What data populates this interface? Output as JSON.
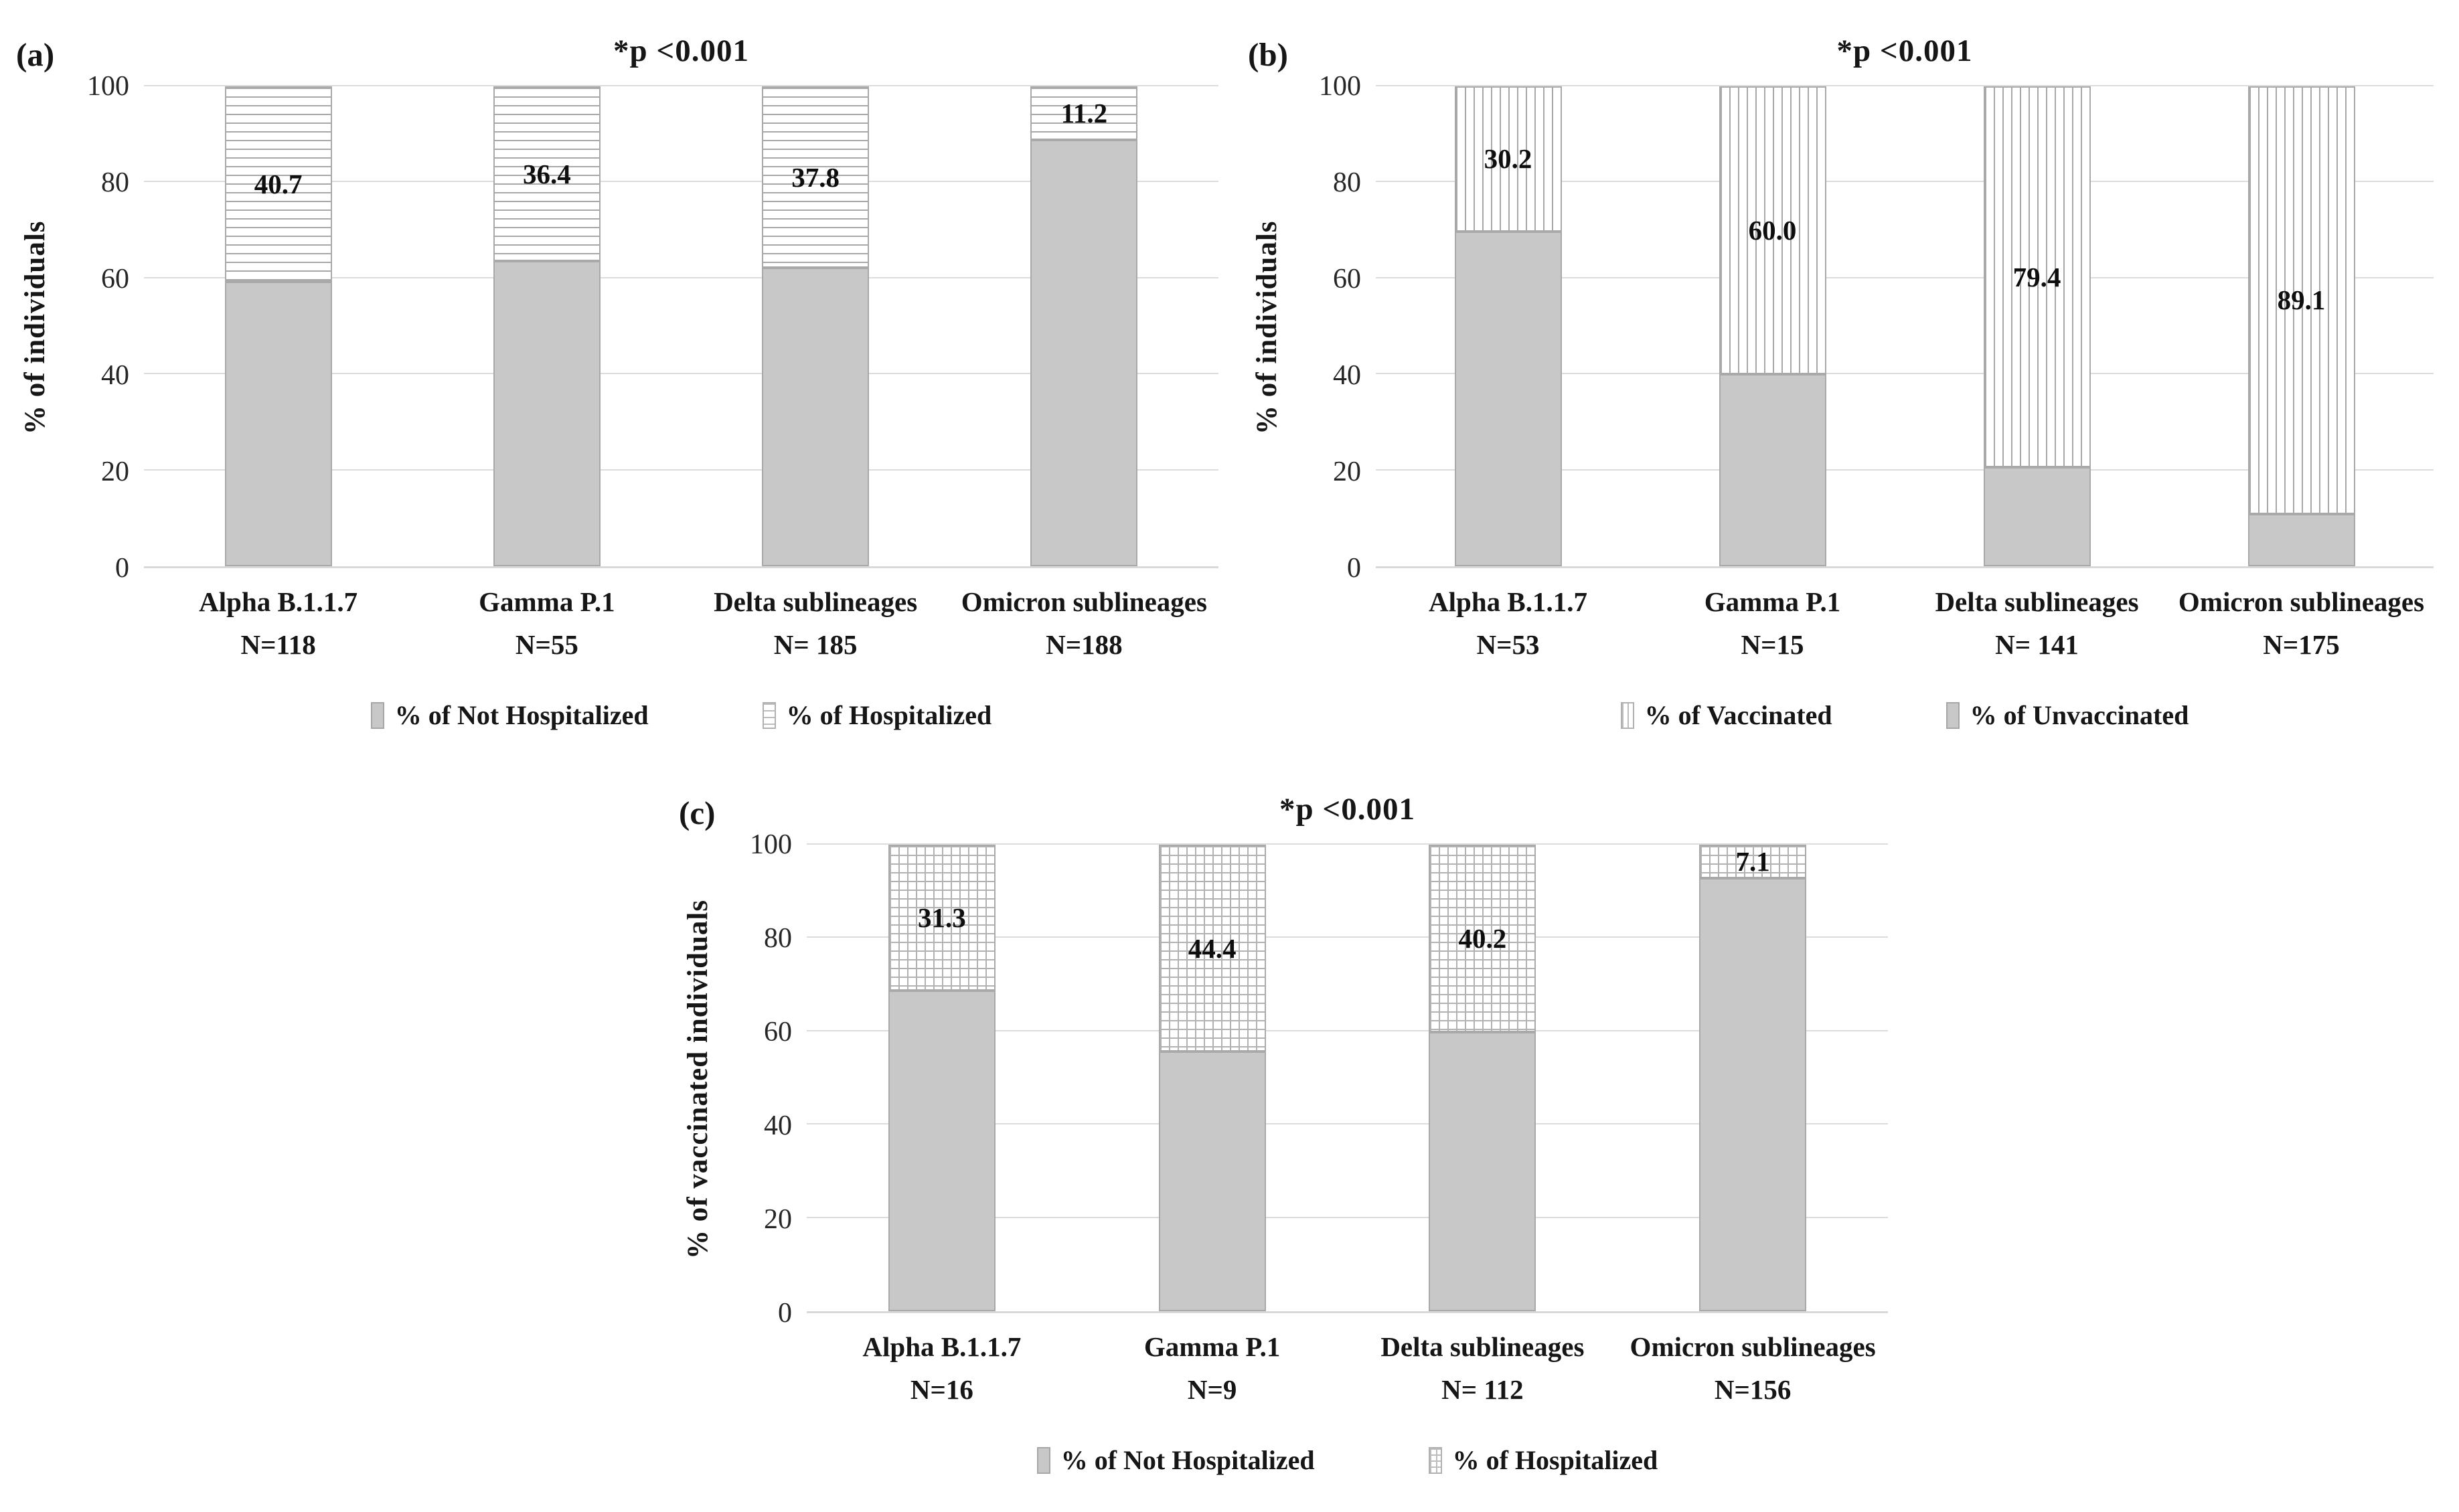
{
  "colors": {
    "bar_fill": "#c8c8c8",
    "bar_border": "#a9a9a9",
    "hatch_line": "#a8a8a8",
    "gridline": "#dcdcdc",
    "text": "#161616",
    "background": "#ffffff"
  },
  "chart_data": [
    {
      "panel_label": "(a)",
      "title": "*p <0.001",
      "type": "bar",
      "stacked": true,
      "ylabel": "% of individuals",
      "ylim": [
        0,
        100
      ],
      "yticks": [
        0,
        20,
        40,
        60,
        80,
        100
      ],
      "grid": true,
      "legend_position": "bottom",
      "categories": [
        {
          "label": "Alpha B.1.1.7",
          "n": "N=118"
        },
        {
          "label": "Gamma P.1",
          "n": "N=55"
        },
        {
          "label": "Delta sublineages",
          "n": "N= 185"
        },
        {
          "label": "Omicron  sublineages",
          "n": "N=188"
        }
      ],
      "series": [
        {
          "name": "% of Not Hospitalized",
          "role": "bottom",
          "style": "solid",
          "values": [
            59.3,
            63.6,
            62.2,
            88.8
          ]
        },
        {
          "name": "% of Hospitalized",
          "role": "top",
          "style": "hatch-h",
          "values": [
            40.7,
            36.4,
            37.8,
            11.2
          ],
          "labels": [
            "40.7",
            "36.4",
            "37.8",
            "11.2"
          ]
        }
      ],
      "legend": [
        {
          "label": "% of Not Hospitalized",
          "style": "solid"
        },
        {
          "label": "% of Hospitalized",
          "style": "hatch-h"
        }
      ]
    },
    {
      "panel_label": "(b)",
      "title": "*p <0.001",
      "type": "bar",
      "stacked": true,
      "ylabel": "% of individuals",
      "ylim": [
        0,
        100
      ],
      "yticks": [
        0,
        20,
        40,
        60,
        80,
        100
      ],
      "grid": true,
      "legend_position": "bottom",
      "categories": [
        {
          "label": "Alpha B.1.1.7",
          "n": "N=53"
        },
        {
          "label": "Gamma P.1",
          "n": "N=15"
        },
        {
          "label": "Delta sublineages",
          "n": "N= 141"
        },
        {
          "label": "Omicron sublineages",
          "n": "N=175"
        }
      ],
      "series": [
        {
          "name": "% of Unvaccinated",
          "role": "bottom",
          "style": "solid",
          "values": [
            69.8,
            40.0,
            20.6,
            10.9
          ]
        },
        {
          "name": "% of Vaccinated",
          "role": "top",
          "style": "hatch-v",
          "values": [
            30.2,
            60.0,
            79.4,
            89.1
          ],
          "labels": [
            "30.2",
            "60.0",
            "79.4",
            "89.1"
          ]
        }
      ],
      "legend": [
        {
          "label": "% of Vaccinated",
          "style": "hatch-v"
        },
        {
          "label": "% of Unvaccinated",
          "style": "solid"
        }
      ]
    },
    {
      "panel_label": "(c)",
      "title": "*p <0.001",
      "type": "bar",
      "stacked": true,
      "ylabel": "% of vaccinated  individuals",
      "ylim": [
        0,
        100
      ],
      "yticks": [
        0,
        20,
        40,
        60,
        80,
        100
      ],
      "grid": true,
      "legend_position": "bottom",
      "categories": [
        {
          "label": "Alpha B.1.1.7",
          "n": "N=16"
        },
        {
          "label": "Gamma P.1",
          "n": "N=9"
        },
        {
          "label": "Delta sublineages",
          "n": "N= 112"
        },
        {
          "label": "Omicron sublineages",
          "n": "N=156"
        }
      ],
      "series": [
        {
          "name": "% of Not Hospitalized",
          "role": "bottom",
          "style": "solid",
          "values": [
            68.7,
            55.6,
            59.8,
            92.9
          ]
        },
        {
          "name": "% of Hospitalized",
          "role": "top",
          "style": "hatch-grid",
          "values": [
            31.3,
            44.4,
            40.2,
            7.1
          ],
          "labels": [
            "31.3",
            "44.4",
            "40.2",
            "7.1"
          ]
        }
      ],
      "legend": [
        {
          "label": "% of Not Hospitalized",
          "style": "solid"
        },
        {
          "label": "% of Hospitalized",
          "style": "hatch-grid"
        }
      ]
    }
  ]
}
